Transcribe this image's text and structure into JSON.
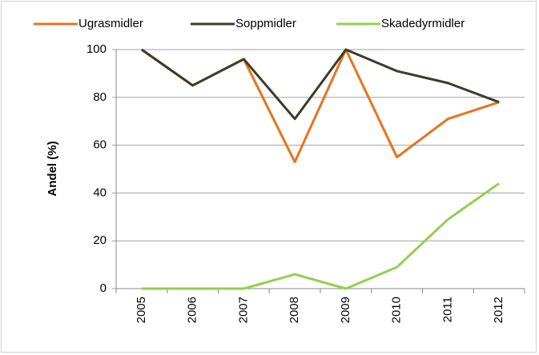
{
  "chart_data": {
    "type": "line",
    "y_label": "Andel (%)",
    "categories": [
      "2005",
      "2006",
      "2007",
      "2008",
      "2009",
      "2010",
      "2011",
      "2012"
    ],
    "series": [
      {
        "name": "Ugrasmidler",
        "color": "#e8731f",
        "values": [
          100,
          85,
          96,
          53,
          100,
          55,
          71,
          78
        ]
      },
      {
        "name": "Soppmidler",
        "color": "#3f3a28",
        "values": [
          100,
          85,
          96,
          71,
          100,
          91,
          86,
          78
        ]
      },
      {
        "name": "Skadedyrmidler",
        "color": "#8fd14f",
        "values": [
          0,
          0,
          0,
          6,
          0,
          9,
          29,
          44
        ]
      }
    ],
    "ylim": [
      0,
      100
    ],
    "yticks": [
      0,
      20,
      40,
      60,
      80,
      100
    ],
    "grid": true,
    "legend": "top"
  }
}
